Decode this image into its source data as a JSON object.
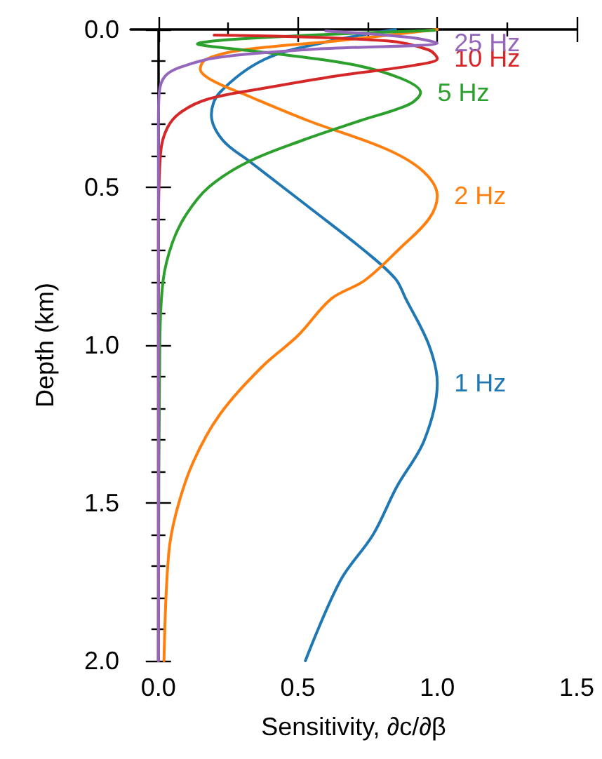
{
  "chart_data": {
    "type": "line",
    "xlabel": "Sensitivity, ∂c/∂β",
    "ylabel": "Depth (km)",
    "xlim": [
      -0.1,
      1.5
    ],
    "xticks": [
      {
        "value": 0,
        "label": "0.0"
      },
      {
        "value": 0.25,
        "label": null
      },
      {
        "value": 0.5,
        "label": "0.5"
      },
      {
        "value": 0.75,
        "label": null
      },
      {
        "value": 1,
        "label": "1.0"
      },
      {
        "value": 1.25,
        "label": null
      },
      {
        "value": 1.5,
        "label": "1.5"
      }
    ],
    "ylim": [
      2.0,
      0.0
    ],
    "yticks": [
      {
        "value": 0,
        "label": "0.0"
      },
      {
        "value": 0.1,
        "label": null
      },
      {
        "value": 0.2,
        "label": null
      },
      {
        "value": 0.3,
        "label": null
      },
      {
        "value": 0.4,
        "label": null
      },
      {
        "value": 0.5,
        "label": "0.5"
      },
      {
        "value": 0.6,
        "label": null
      },
      {
        "value": 0.7,
        "label": null
      },
      {
        "value": 0.8,
        "label": null
      },
      {
        "value": 0.9,
        "label": null
      },
      {
        "value": 1,
        "label": "1.0"
      },
      {
        "value": 1.1,
        "label": null
      },
      {
        "value": 1.2,
        "label": null
      },
      {
        "value": 1.3,
        "label": null
      },
      {
        "value": 1.4,
        "label": null
      },
      {
        "value": 1.5,
        "label": "1.5"
      },
      {
        "value": 1.6,
        "label": null
      },
      {
        "value": 1.7,
        "label": null
      },
      {
        "value": 1.8,
        "label": null
      },
      {
        "value": 1.9,
        "label": null
      },
      {
        "value": 2,
        "label": "2.0"
      }
    ],
    "grid": false,
    "legend": false,
    "marker": "none",
    "line_style": "solid",
    "series": [
      {
        "name": "1 Hz",
        "color": "#1f77b4",
        "x": [
          0.85,
          0.6,
          0.38,
          0.22,
          0.19,
          0.23,
          0.33,
          0.55,
          0.745,
          0.85,
          0.887,
          0.97,
          1.0,
          0.954,
          0.854,
          0.77,
          0.653,
          0.527
        ],
        "values": [
          0,
          0.04,
          0.095,
          0.2,
          0.27,
          0.35,
          0.42,
          0.57,
          0.705,
          0.79,
          0.853,
          1.0,
          1.12,
          1.3,
          1.45,
          1.6,
          1.745,
          2.0
        ]
      },
      {
        "name": "2 Hz",
        "color": "#ff7f0e",
        "x": [
          1.0,
          0.64,
          0.3,
          0.17,
          0.15,
          0.19,
          0.32,
          0.54,
          0.82,
          0.95,
          1.0,
          0.97,
          0.87,
          0.74,
          0.62,
          0.5,
          0.37,
          0.22,
          0.125,
          0.067,
          0.037,
          0.02
        ],
        "values": [
          0,
          0.036,
          0.065,
          0.095,
          0.125,
          0.16,
          0.21,
          0.29,
          0.38,
          0.45,
          0.527,
          0.6,
          0.69,
          0.795,
          0.853,
          0.97,
          1.07,
          1.22,
          1.37,
          1.52,
          1.66,
          2.0
        ]
      },
      {
        "name": "5 Hz",
        "color": "#2ca02c",
        "x": [
          0.99,
          0.14,
          0.385,
          0.69,
          0.87,
          0.94,
          0.9,
          0.72,
          0.52,
          0.32,
          0.18,
          0.1,
          0.05,
          0.017,
          0.005,
          0.0
        ],
        "values": [
          0.003,
          0.046,
          0.073,
          0.11,
          0.155,
          0.2,
          0.237,
          0.29,
          0.35,
          0.42,
          0.5,
          0.586,
          0.676,
          0.795,
          1.0,
          2.0
        ]
      },
      {
        "name": "10 Hz",
        "color": "#d62728",
        "x": [
          0.2,
          0.82,
          0.97,
          1.0,
          0.92,
          0.64,
          0.385,
          0.18,
          0.084,
          0.033,
          0.008,
          0.0,
          0.0
        ],
        "values": [
          0.018,
          0.036,
          0.065,
          0.092,
          0.113,
          0.147,
          0.185,
          0.22,
          0.26,
          0.31,
          0.39,
          0.65,
          2.0
        ]
      },
      {
        "name": "25 Hz",
        "color": "#9467bd",
        "x": [
          0.6,
          0.9,
          1.0,
          0.55,
          0.22,
          0.084,
          0.025,
          0.003,
          0.0,
          0.0
        ],
        "values": [
          0.005,
          0.025,
          0.043,
          0.063,
          0.088,
          0.118,
          0.147,
          0.2,
          0.3,
          2.0
        ]
      }
    ]
  }
}
